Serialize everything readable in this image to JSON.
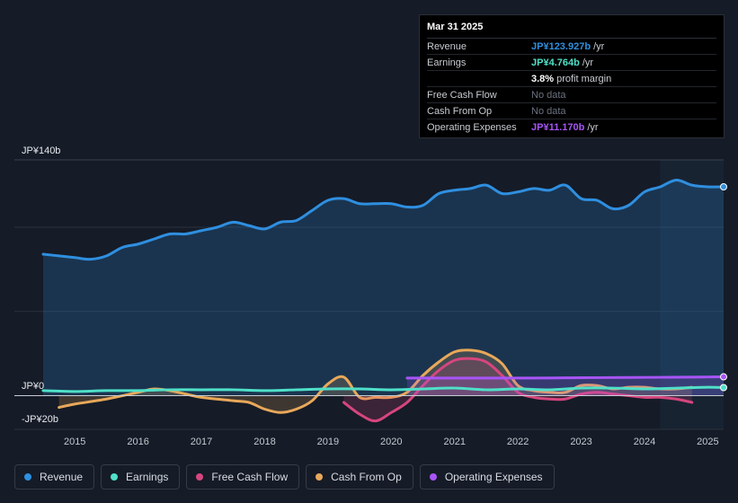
{
  "tooltip": {
    "date": "Mar 31 2025",
    "rows": [
      {
        "label": "Revenue",
        "value": "JP¥123.927b",
        "unit": "/yr",
        "color": "#2f8fe0"
      },
      {
        "label": "Earnings",
        "value": "JP¥4.764b",
        "unit": "/yr",
        "color": "#4fe0c8"
      },
      {
        "label": "",
        "value": "3.8%",
        "unit": "profit margin",
        "color": "#ffffff"
      },
      {
        "label": "Free Cash Flow",
        "value": "No data",
        "unit": "",
        "color": "#6b7280"
      },
      {
        "label": "Cash From Op",
        "value": "No data",
        "unit": "",
        "color": "#6b7280"
      },
      {
        "label": "Operating Expenses",
        "value": "JP¥11.170b",
        "unit": "/yr",
        "color": "#a855f7"
      }
    ]
  },
  "legend": [
    {
      "label": "Revenue",
      "color": "#2f8fe0"
    },
    {
      "label": "Earnings",
      "color": "#4fe0c8"
    },
    {
      "label": "Free Cash Flow",
      "color": "#d6467e"
    },
    {
      "label": "Cash From Op",
      "color": "#e8a85a"
    },
    {
      "label": "Operating Expenses",
      "color": "#a855f7"
    }
  ],
  "chart_data": {
    "type": "line",
    "title": "",
    "y_top_label": "JP¥140b",
    "y_zero_label": "JP¥0",
    "y_bottom_label": "-JP¥20b",
    "ylim": [
      -20,
      140
    ],
    "x_ticks": [
      "2015",
      "2016",
      "2017",
      "2018",
      "2019",
      "2020",
      "2021",
      "2022",
      "2023",
      "2024",
      "2025"
    ],
    "xlim": [
      2014.5,
      2025.25
    ],
    "forecast_start": 2024.25,
    "series": [
      {
        "name": "Revenue",
        "color": "#2f8fe0",
        "area": true,
        "x": [
          2014.5,
          2014.75,
          2015.0,
          2015.25,
          2015.5,
          2015.75,
          2016.0,
          2016.25,
          2016.5,
          2016.75,
          2017.0,
          2017.25,
          2017.5,
          2017.75,
          2018.0,
          2018.25,
          2018.5,
          2018.75,
          2019.0,
          2019.25,
          2019.5,
          2019.75,
          2020.0,
          2020.25,
          2020.5,
          2020.75,
          2021.0,
          2021.25,
          2021.5,
          2021.75,
          2022.0,
          2022.25,
          2022.5,
          2022.75,
          2023.0,
          2023.25,
          2023.5,
          2023.75,
          2024.0,
          2024.25,
          2024.5,
          2024.75,
          2025.0,
          2025.25
        ],
        "y": [
          84,
          83,
          82,
          81,
          83,
          88,
          90,
          93,
          96,
          96,
          98,
          100,
          103,
          101,
          99,
          103,
          104,
          110,
          116,
          117,
          114,
          114,
          114,
          112,
          113,
          120,
          122,
          123,
          125,
          120,
          121,
          123,
          122,
          125,
          117,
          116,
          111,
          113,
          121,
          124,
          128,
          125,
          124,
          124
        ]
      },
      {
        "name": "Earnings",
        "color": "#4fe0c8",
        "area": false,
        "x": [
          2014.5,
          2015.0,
          2015.5,
          2016.0,
          2016.5,
          2017.0,
          2017.5,
          2018.0,
          2018.5,
          2019.0,
          2019.5,
          2020.0,
          2020.5,
          2021.0,
          2021.5,
          2022.0,
          2022.5,
          2023.0,
          2023.5,
          2024.0,
          2024.5,
          2025.0,
          2025.25
        ],
        "y": [
          3,
          2.5,
          3,
          3,
          3.5,
          3.5,
          3.5,
          3,
          3.5,
          4,
          4,
          3.5,
          4,
          4.5,
          3.5,
          4,
          3.5,
          4.5,
          4.5,
          4,
          4.5,
          5,
          4.8
        ]
      },
      {
        "name": "Free Cash Flow",
        "color": "#d6467e",
        "area": true,
        "x": [
          2019.25,
          2019.5,
          2019.75,
          2020.0,
          2020.25,
          2020.5,
          2020.75,
          2021.0,
          2021.25,
          2021.5,
          2021.75,
          2022.0,
          2022.25,
          2022.5,
          2022.75,
          2023.0,
          2023.25,
          2023.5,
          2023.75,
          2024.0,
          2024.25,
          2024.5,
          2024.75
        ],
        "y": [
          -4,
          -11,
          -15,
          -10,
          -4,
          6,
          15,
          21,
          22,
          20,
          12,
          2,
          -1,
          -2,
          -2,
          1,
          2,
          1,
          0,
          -1,
          -1,
          -2,
          -4
        ]
      },
      {
        "name": "Cash From Op",
        "color": "#e8a85a",
        "area": true,
        "x": [
          2014.75,
          2015.0,
          2015.5,
          2016.0,
          2016.25,
          2016.5,
          2016.75,
          2017.0,
          2017.5,
          2017.75,
          2018.0,
          2018.25,
          2018.5,
          2018.75,
          2019.0,
          2019.25,
          2019.5,
          2019.75,
          2020.0,
          2020.25,
          2020.5,
          2020.75,
          2021.0,
          2021.25,
          2021.5,
          2021.75,
          2022.0,
          2022.25,
          2022.5,
          2022.75,
          2023.0,
          2023.25,
          2023.5,
          2023.75,
          2024.0,
          2024.25,
          2024.5,
          2024.75
        ],
        "y": [
          -7,
          -5,
          -2,
          2,
          4,
          3,
          1,
          -1,
          -3,
          -4,
          -8,
          -10,
          -8,
          -3,
          7,
          11,
          -1,
          -1,
          -1,
          2,
          12,
          20,
          26,
          27,
          25,
          19,
          6,
          3,
          2,
          2,
          6,
          6,
          4,
          5,
          5,
          4,
          4,
          5
        ]
      },
      {
        "name": "Operating Expenses",
        "color": "#a855f7",
        "area": true,
        "x": [
          2020.25,
          2020.75,
          2021.25,
          2021.75,
          2022.25,
          2022.75,
          2023.25,
          2023.75,
          2024.25,
          2024.75,
          2025.0,
          2025.25
        ],
        "y": [
          10.5,
          10.5,
          10.5,
          10.5,
          10.5,
          10.6,
          10.7,
          10.8,
          10.9,
          11,
          11.1,
          11.17
        ]
      }
    ]
  }
}
